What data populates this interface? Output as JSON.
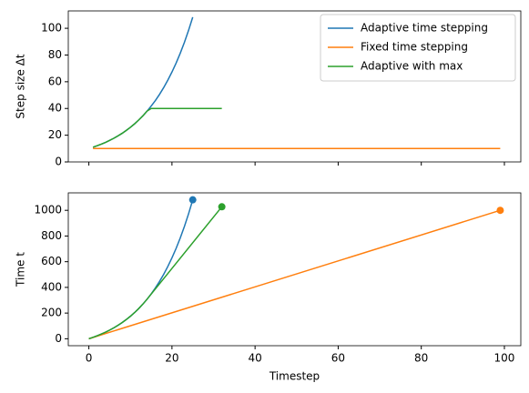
{
  "chart_data": [
    {
      "type": "line",
      "ylabel": "Step size Δt",
      "legend": "upper right",
      "show_xtick_labels": false,
      "xlim": [
        -4.95,
        103.95
      ],
      "xticks": [
        0,
        20,
        40,
        60,
        80,
        100
      ],
      "ylim": [
        0,
        113
      ],
      "yticks": [
        0,
        20,
        40,
        60,
        80,
        100
      ],
      "series": [
        {
          "name": "Adaptive time stepping",
          "color": "#1f77b4",
          "x": [
            1,
            2,
            3,
            4,
            5,
            6,
            7,
            8,
            9,
            10,
            11,
            12,
            13,
            14,
            15,
            16,
            17,
            18,
            19,
            20,
            21,
            22,
            23,
            24,
            25
          ],
          "values": [
            11.0,
            12.1,
            13.3,
            14.6,
            16.1,
            17.7,
            19.5,
            21.4,
            23.6,
            25.9,
            28.5,
            31.4,
            34.5,
            38.0,
            41.8,
            45.9,
            50.5,
            55.6,
            61.2,
            67.3,
            74.0,
            81.4,
            89.5,
            98.5,
            108.3
          ]
        },
        {
          "name": "Fixed time stepping",
          "color": "#ff7f0e",
          "x": [
            1,
            99
          ],
          "values": [
            10,
            10
          ]
        },
        {
          "name": "Adaptive with max",
          "color": "#2ca02c",
          "x": [
            1,
            2,
            3,
            4,
            5,
            6,
            7,
            8,
            9,
            10,
            11,
            12,
            13,
            14,
            15,
            32
          ],
          "values": [
            11.0,
            12.1,
            13.3,
            14.6,
            16.1,
            17.7,
            19.5,
            21.4,
            23.6,
            25.9,
            28.5,
            31.4,
            34.5,
            38.0,
            40,
            40
          ]
        }
      ]
    },
    {
      "type": "line",
      "xlabel": "Timestep",
      "ylabel": "Time t",
      "show_xtick_labels": true,
      "marker": "o",
      "xlim": [
        -4.95,
        103.95
      ],
      "xticks": [
        0,
        20,
        40,
        60,
        80,
        100
      ],
      "ylim": [
        -54,
        1136
      ],
      "yticks": [
        0,
        200,
        400,
        600,
        800,
        1000
      ],
      "series": [
        {
          "color": "#1f77b4",
          "x": [
            0,
            1,
            2,
            3,
            4,
            5,
            6,
            7,
            8,
            9,
            10,
            11,
            12,
            13,
            14,
            15,
            16,
            17,
            18,
            19,
            20,
            21,
            22,
            23,
            24,
            25
          ],
          "values": [
            0,
            11.0,
            23.1,
            36.4,
            51.1,
            67.2,
            84.9,
            104.4,
            125.8,
            149.4,
            175.3,
            203.8,
            235.2,
            269.7,
            307.7,
            349.5,
            395.4,
            445.9,
            501.5,
            562.7,
            630.0,
            704.0,
            785.4,
            874.9,
            973.4,
            1081.7
          ]
        },
        {
          "color": "#ff7f0e",
          "x": [
            0,
            99
          ],
          "values": [
            0,
            1000
          ]
        },
        {
          "color": "#2ca02c",
          "x": [
            0,
            1,
            2,
            3,
            4,
            5,
            6,
            7,
            8,
            9,
            10,
            11,
            12,
            13,
            14,
            32
          ],
          "values": [
            0,
            11.0,
            23.1,
            36.4,
            51.1,
            67.2,
            84.9,
            104.4,
            125.8,
            149.4,
            175.3,
            203.8,
            235.2,
            269.7,
            307.7,
            1027.7
          ]
        }
      ]
    }
  ]
}
